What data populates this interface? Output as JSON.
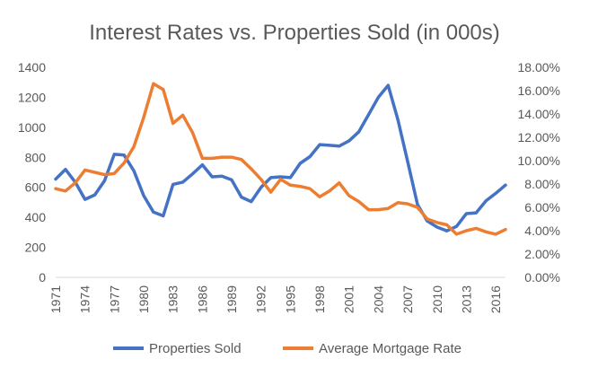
{
  "chart_data": {
    "type": "line",
    "title": "Interest Rates vs. Properties Sold (in 000s)",
    "xlabel": "",
    "ylabel": "",
    "y2label": "",
    "x": [
      1971,
      1972,
      1973,
      1974,
      1975,
      1976,
      1977,
      1978,
      1979,
      1980,
      1981,
      1982,
      1983,
      1984,
      1985,
      1986,
      1987,
      1988,
      1989,
      1990,
      1991,
      1992,
      1993,
      1994,
      1995,
      1996,
      1997,
      1998,
      1999,
      2000,
      2001,
      2002,
      2003,
      2004,
      2005,
      2006,
      2007,
      2008,
      2009,
      2010,
      2011,
      2012,
      2013,
      2014,
      2015,
      2016,
      2017
    ],
    "x_tick_labels": [
      "1971",
      "1974",
      "1977",
      "1980",
      "1983",
      "1986",
      "1989",
      "1992",
      "1995",
      "1998",
      "2001",
      "2004",
      "2007",
      "2010",
      "2013",
      "2016"
    ],
    "ylim": [
      0,
      1400
    ],
    "y_ticks": [
      0,
      200,
      400,
      600,
      800,
      1000,
      1200,
      1400
    ],
    "y_tick_labels": [
      "0",
      "200",
      "400",
      "600",
      "800",
      "1000",
      "1200",
      "1400"
    ],
    "y2lim": [
      0,
      18
    ],
    "y2_ticks": [
      0,
      2,
      4,
      6,
      8,
      10,
      12,
      14,
      16,
      18
    ],
    "y2_tick_labels": [
      "0.00%",
      "2.00%",
      "4.00%",
      "6.00%",
      "8.00%",
      "10.00%",
      "12.00%",
      "14.00%",
      "16.00%",
      "18.00%"
    ],
    "grid": false,
    "legend_position": "bottom",
    "series": [
      {
        "name": "Properties Sold",
        "axis": "left",
        "color": "#4472C4",
        "values": [
          655,
          720,
          635,
          520,
          550,
          645,
          820,
          815,
          710,
          545,
          435,
          410,
          620,
          635,
          690,
          750,
          670,
          675,
          650,
          535,
          505,
          600,
          665,
          670,
          665,
          760,
          805,
          885,
          880,
          875,
          910,
          970,
          1085,
          1200,
          1280,
          1050,
          770,
          485,
          375,
          335,
          310,
          340,
          425,
          430,
          510,
          560,
          615
        ]
      },
      {
        "name": "Average Mortgage Rate",
        "axis": "right",
        "color": "#ED7D31",
        "values": [
          7.6,
          7.4,
          8.1,
          9.2,
          9.0,
          8.8,
          8.9,
          9.8,
          11.2,
          13.7,
          16.6,
          16.1,
          13.2,
          13.9,
          12.4,
          10.2,
          10.2,
          10.3,
          10.3,
          10.1,
          9.3,
          8.4,
          7.3,
          8.4,
          7.9,
          7.8,
          7.6,
          6.9,
          7.4,
          8.1,
          7.0,
          6.5,
          5.8,
          5.8,
          5.9,
          6.4,
          6.3,
          6.0,
          5.0,
          4.7,
          4.5,
          3.7,
          4.0,
          4.2,
          3.9,
          3.7,
          4.1
        ]
      }
    ]
  }
}
